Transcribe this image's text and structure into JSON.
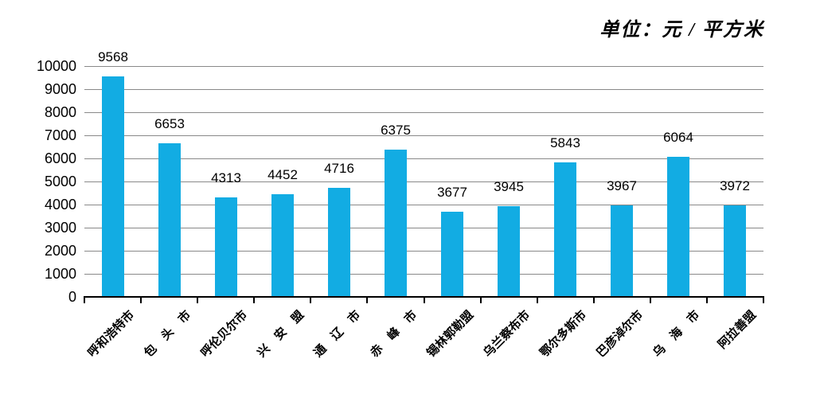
{
  "unit_label": "单位：元 / 平方米",
  "colors": {
    "bar": "#12ace3",
    "gridline": "#898989",
    "axis": "#000000",
    "background": "#ffffff",
    "text": "#000000"
  },
  "chart_data": {
    "type": "bar",
    "title": "单位：元 / 平方米",
    "categories": [
      "呼和浩特市",
      "包　头　市",
      "呼伦贝尔市",
      "兴　安　盟",
      "通　辽　市",
      "赤　峰　市",
      "锡林郭勒盟",
      "乌兰察布市",
      "鄂尔多斯市",
      "巴彦淖尔市",
      "乌　海　市",
      "阿拉善盟"
    ],
    "values": [
      9568,
      6653,
      4313,
      4452,
      4716,
      6375,
      3677,
      3945,
      5843,
      3967,
      6064,
      3972
    ],
    "xlabel": "",
    "ylabel": "",
    "ylim": [
      0,
      10000
    ],
    "ytick_interval": 1000,
    "yticks": [
      0,
      1000,
      2000,
      3000,
      4000,
      5000,
      6000,
      7000,
      8000,
      9000,
      10000
    ],
    "grid": "horizontal-gridlines-on",
    "legend": "none",
    "value_labels": "above-bars",
    "x_label_rotation_deg": 45
  }
}
